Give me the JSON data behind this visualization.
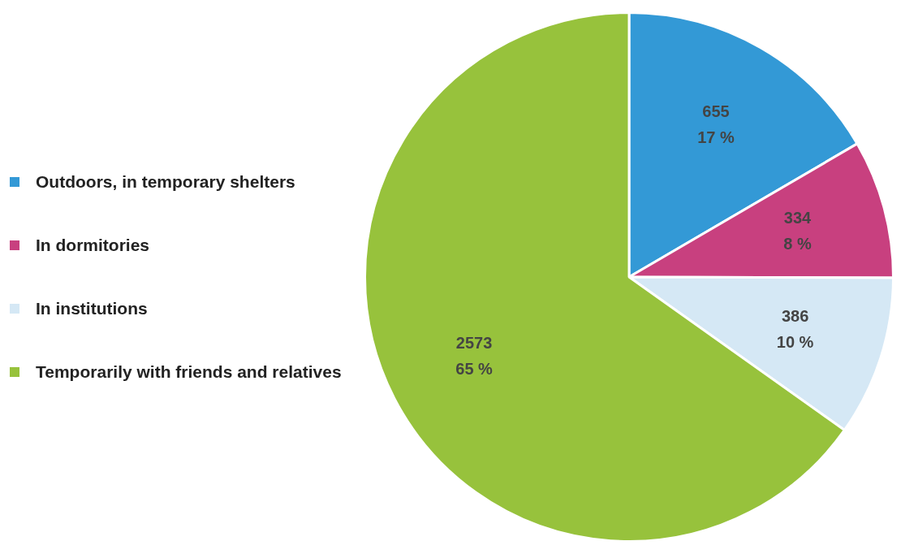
{
  "chart_data": {
    "type": "pie",
    "categories": [
      "Outdoors, in temporary shelters",
      "In dormitories",
      "In institutions",
      "Temporarily with friends and relatives"
    ],
    "values": [
      655,
      334,
      386,
      2573
    ],
    "colors": [
      "#3399d6",
      "#c8407f",
      "#d5e8f5",
      "#97c23c"
    ],
    "value_labels": [
      "655\n17 %",
      "334\n8 %",
      "386\n10 %",
      "2573\n65 %"
    ],
    "legend": "left"
  }
}
